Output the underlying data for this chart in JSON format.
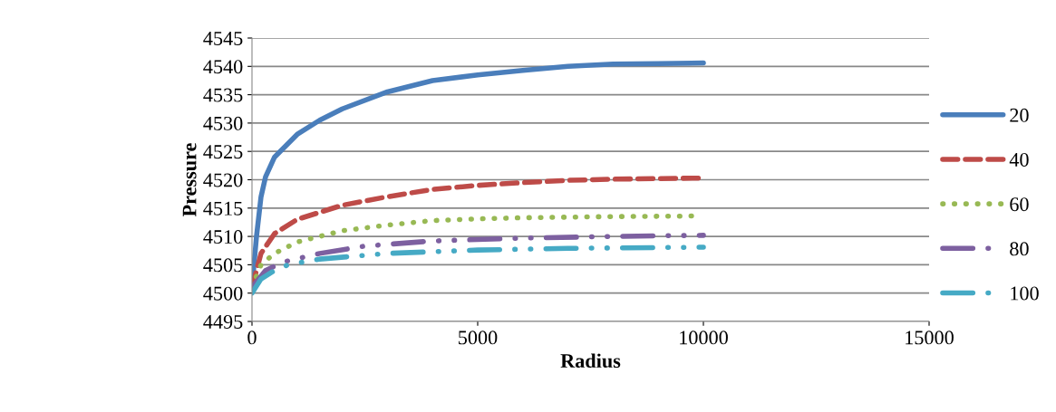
{
  "chart_data": {
    "type": "line",
    "xlabel": "Radius",
    "ylabel": "Pressure",
    "xlim": [
      0,
      15000
    ],
    "xticks": [
      0,
      5000,
      10000,
      15000
    ],
    "ylim": [
      4495,
      4545
    ],
    "yticks": [
      4495,
      4500,
      4505,
      4510,
      4515,
      4520,
      4525,
      4530,
      4535,
      4540,
      4545
    ],
    "grid": "y",
    "legend": "right",
    "marker": "none",
    "series": [
      {
        "name": "20",
        "color": "#4a7ebb",
        "line_style": "solid",
        "x": [
          0,
          100,
          200,
          300,
          500,
          1000,
          1500,
          2000,
          3000,
          4000,
          5000,
          6000,
          7000,
          8000,
          9000,
          10000
        ],
        "values": [
          4501,
          4510,
          4517,
          4520.5,
          4524,
          4528,
          4530.5,
          4532.5,
          4535.5,
          4537.5,
          4538.5,
          4539.3,
          4540,
          4540.4,
          4540.5,
          4540.6
        ]
      },
      {
        "name": "40",
        "color": "#be4b48",
        "line_style": "dashed",
        "x": [
          0,
          200,
          500,
          1000,
          2000,
          3000,
          4000,
          5000,
          6000,
          7000,
          8000,
          10000
        ],
        "values": [
          4501,
          4507,
          4510.5,
          4513,
          4515.5,
          4517,
          4518.3,
          4519,
          4519.5,
          4519.9,
          4520.1,
          4520.3
        ]
      },
      {
        "name": "60",
        "color": "#98b954",
        "line_style": "dotted",
        "x": [
          0,
          200,
          500,
          1000,
          2000,
          3000,
          4000,
          5000,
          6000,
          8000,
          9800
        ],
        "values": [
          4501,
          4505,
          4507,
          4509,
          4511,
          4512,
          4512.8,
          4513.1,
          4513.3,
          4513.5,
          4513.6
        ]
      },
      {
        "name": "80",
        "color": "#7d60a0",
        "line_style": "dashdot",
        "x": [
          0,
          300,
          700,
          1500,
          2500,
          4000,
          6000,
          8000,
          10000
        ],
        "values": [
          4501,
          4504,
          4505.5,
          4507,
          4508.3,
          4509.2,
          4509.7,
          4510,
          4510.2
        ]
      },
      {
        "name": "100",
        "color": "#46aac5",
        "line_style": "dashdot",
        "x": [
          0,
          200,
          500,
          800,
          1500,
          3000,
          5000,
          7000,
          10000
        ],
        "values": [
          4500,
          4502.5,
          4504,
          4505,
          4506,
          4507,
          4507.6,
          4507.9,
          4508.1
        ]
      }
    ]
  }
}
